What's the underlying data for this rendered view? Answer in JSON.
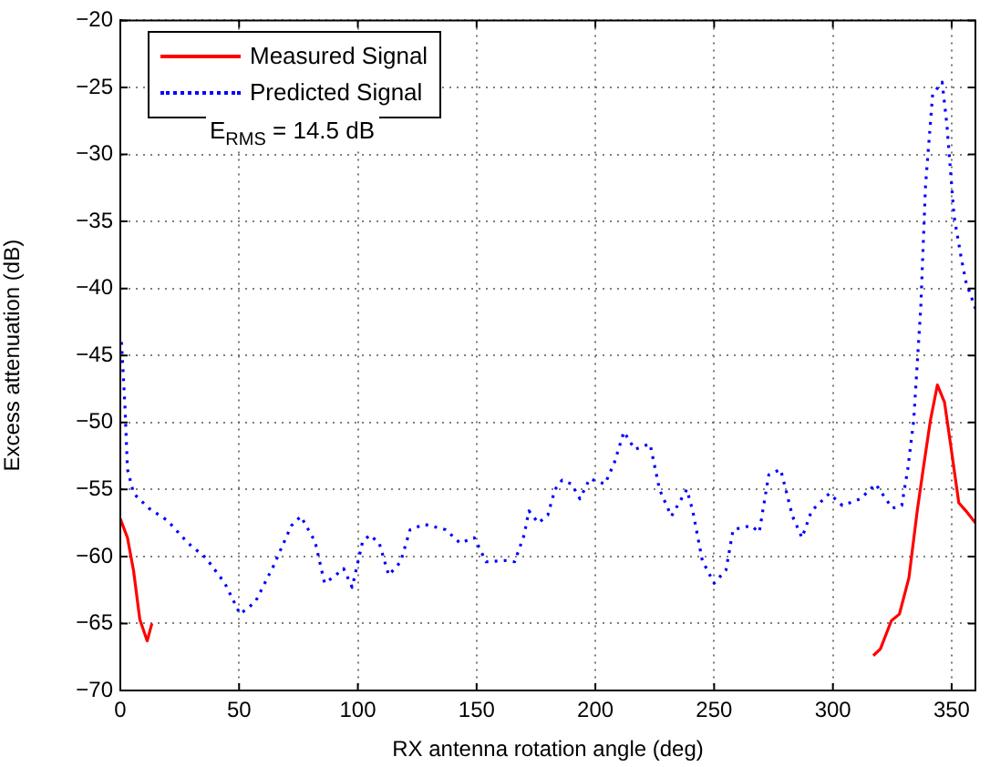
{
  "chart_data": {
    "type": "line",
    "xlabel": "RX antenna rotation angle (deg)",
    "ylabel": "Excess attenuation (dB)",
    "xlim": [
      0,
      360
    ],
    "xticks": [
      0,
      50,
      100,
      150,
      200,
      250,
      300,
      350
    ],
    "ylim": [
      -70,
      -20
    ],
    "yticks": [
      -70,
      -65,
      -60,
      -55,
      -50,
      -45,
      -40,
      -35,
      -30,
      -25,
      -20
    ],
    "grid": true,
    "legend": "top left",
    "marker": "none",
    "annotations": [
      "E$_{RMS}$ = 14.5 dB"
    ],
    "series": [
      {
        "name": "Measured Signal",
        "color": "#ff0000",
        "line_style": "solid",
        "x": [
          0,
          3,
          5.6,
          8.2,
          11.3,
          13.3,
          14,
          317,
          320,
          324.6,
          328,
          332,
          335.5,
          338,
          341,
          344,
          347,
          350,
          353,
          356,
          360
        ],
        "values": [
          -57.2,
          -58.6,
          -61.1,
          -64.7,
          -66.3,
          -65,
          null,
          -67.4,
          -66.9,
          -64.8,
          -64.3,
          -61.6,
          -56.6,
          -53.5,
          -49.9,
          -47.2,
          -48.5,
          -52.2,
          -56,
          -56.6,
          -57.5
        ]
      },
      {
        "name": "Predicted Signal",
        "color": "#0000ff",
        "line_style": "dotted",
        "x": [
          0.5,
          2,
          3,
          5.6,
          12,
          19.7,
          28.5,
          36,
          44,
          50.4,
          56.8,
          64.5,
          72,
          76,
          82,
          86,
          90,
          94,
          97.6,
          102,
          105,
          109,
          113,
          118,
          122,
          128,
          137,
          143,
          149,
          154,
          162,
          166,
          170,
          172,
          176,
          180,
          183,
          186,
          190,
          193.5,
          197.6,
          204,
          208,
          212,
          216.6,
          223,
          227,
          232,
          238.5,
          241,
          245,
          250,
          255,
          258,
          265.5,
          269,
          273,
          278,
          283,
          287,
          291,
          298.5,
          304,
          311.6,
          318,
          325,
          329,
          331.5,
          334,
          337,
          339,
          342,
          346,
          348,
          351,
          354,
          356,
          360
        ],
        "values": [
          -44,
          -49,
          -53.5,
          -55.3,
          -56.4,
          -57.3,
          -59,
          -60.1,
          -62,
          -64.3,
          -63.4,
          -60.7,
          -57.7,
          -57,
          -58.9,
          -62,
          -61.5,
          -60.9,
          -62.3,
          -58.9,
          -58.4,
          -59,
          -61.4,
          -60.4,
          -58,
          -57.6,
          -58,
          -59,
          -58.6,
          -60.4,
          -60.3,
          -60.4,
          -58.4,
          -56.6,
          -57.5,
          -56.9,
          -55,
          -54.3,
          -54.6,
          -55.7,
          -54.2,
          -54.6,
          -53,
          -50.7,
          -52,
          -51.6,
          -55,
          -57,
          -55,
          -56.6,
          -60.3,
          -62,
          -61,
          -58,
          -57.7,
          -58.2,
          -53.9,
          -53.5,
          -57,
          -58.6,
          -56.6,
          -55.3,
          -56.2,
          -55.7,
          -54.6,
          -56.4,
          -56.2,
          -53.5,
          -49.9,
          -41.4,
          -32.3,
          -25.5,
          -24.6,
          -27.8,
          -34.6,
          -37.7,
          -39.5,
          -41.5
        ]
      }
    ]
  }
}
